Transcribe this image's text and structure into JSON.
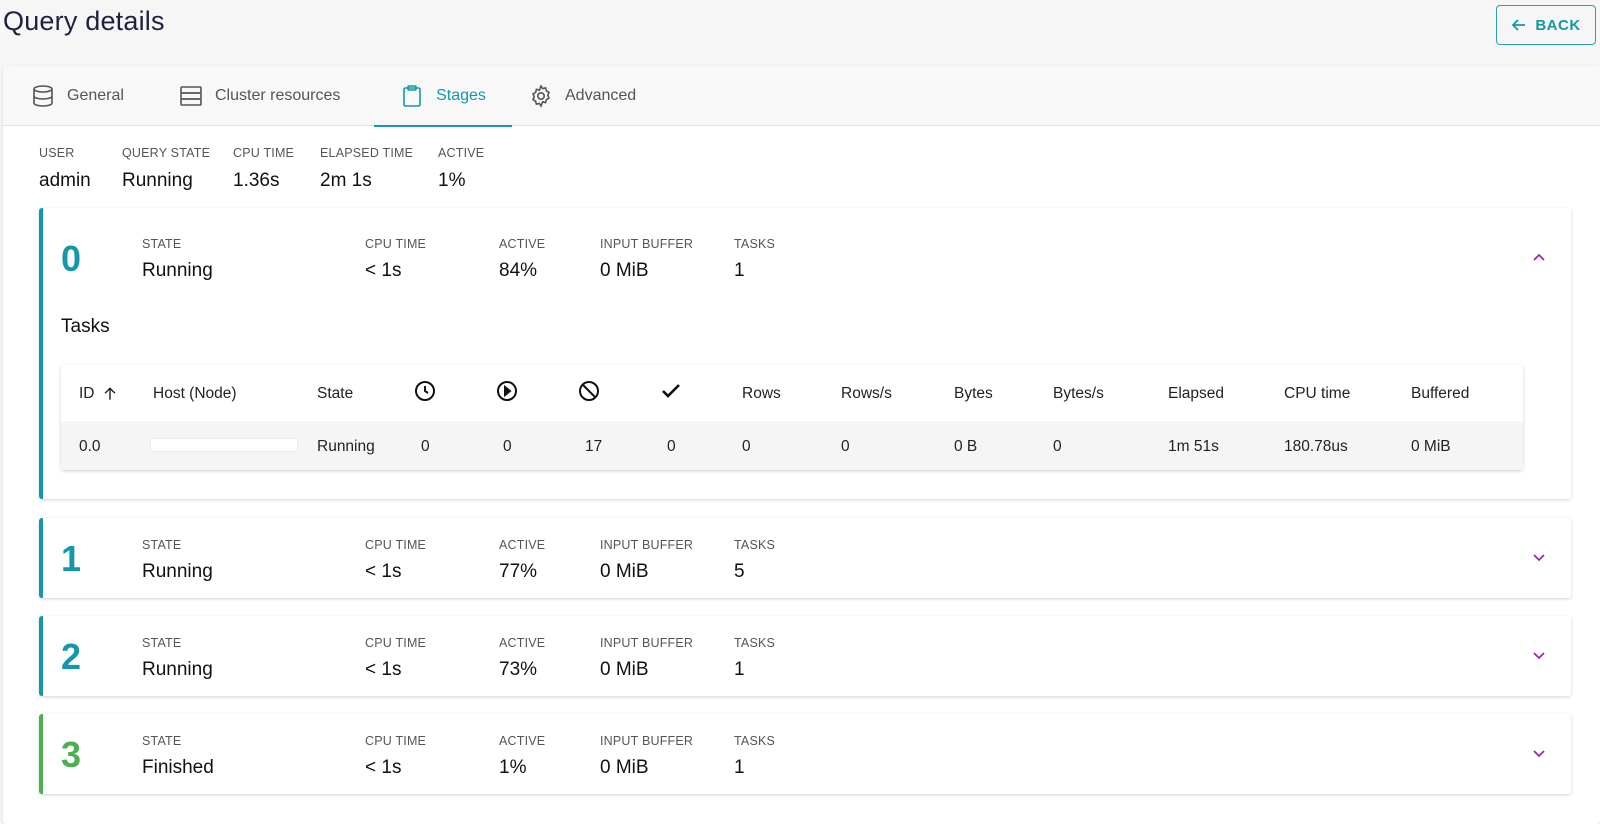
{
  "header": {
    "title": "Query details",
    "back_label": "BACK"
  },
  "tabs": [
    {
      "label": "General",
      "icon": "database-icon"
    },
    {
      "label": "Cluster resources",
      "icon": "server-icon"
    },
    {
      "label": "Stages",
      "icon": "clipboard-icon",
      "active": true
    },
    {
      "label": "Advanced",
      "icon": "gear-icon"
    }
  ],
  "summary": {
    "user_label": "USER",
    "user": "admin",
    "state_label": "QUERY STATE",
    "state": "Running",
    "cpu_label": "CPU TIME",
    "cpu": "1.36s",
    "elapsed_label": "ELAPSED TIME",
    "elapsed": "2m 1s",
    "active_label": "ACTIVE",
    "active": "1%"
  },
  "stage_labels": {
    "state": "STATE",
    "cpu": "CPU TIME",
    "active": "ACTIVE",
    "buffer": "INPUT BUFFER",
    "tasks": "TASKS"
  },
  "stages": [
    {
      "id": "0",
      "state": "Running",
      "cpu": "< 1s",
      "active": "84%",
      "buffer": "0 MiB",
      "tasks": "1",
      "expanded": true
    },
    {
      "id": "1",
      "state": "Running",
      "cpu": "< 1s",
      "active": "77%",
      "buffer": "0 MiB",
      "tasks": "5"
    },
    {
      "id": "2",
      "state": "Running",
      "cpu": "< 1s",
      "active": "73%",
      "buffer": "0 MiB",
      "tasks": "1"
    },
    {
      "id": "3",
      "state": "Finished",
      "cpu": "< 1s",
      "active": "1%",
      "buffer": "0 MiB",
      "tasks": "1"
    }
  ],
  "tasks": {
    "title": "Tasks",
    "headers": {
      "id": "ID",
      "host": "Host (Node)",
      "state": "State",
      "rows": "Rows",
      "rows_s": "Rows/s",
      "bytes": "Bytes",
      "bytes_s": "Bytes/s",
      "elapsed": "Elapsed",
      "cpu": "CPU time",
      "buffered": "Buffered"
    },
    "icon_headers": [
      "clock-icon",
      "play-circle-icon",
      "blocked-icon",
      "check-icon"
    ],
    "row": {
      "id": "0.0",
      "host": "",
      "state": "Running",
      "planned": "0",
      "running": "0",
      "blocked": "17",
      "finished": "0",
      "rows": "0",
      "rows_s": "0",
      "bytes": "0 B",
      "bytes_s": "0",
      "elapsed": "1m 51s",
      "cpu": "180.78us",
      "buffered": "0 MiB"
    }
  }
}
